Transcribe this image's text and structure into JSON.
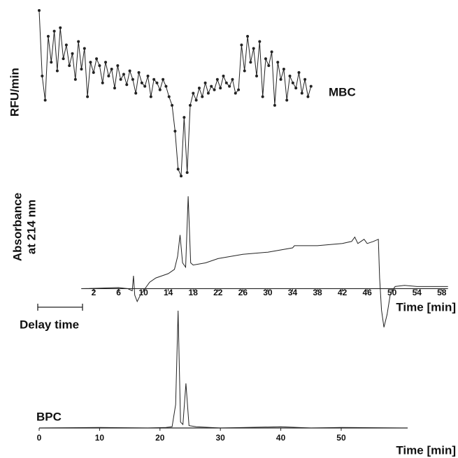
{
  "chart_data": [
    {
      "type": "line",
      "markers": true,
      "color": "#222",
      "label": "MBC",
      "y_label": "RFU/min",
      "xlim": [
        0,
        61
      ],
      "ylim": [
        0,
        100
      ],
      "x": [
        0,
        0.5,
        1,
        1.5,
        2,
        2.5,
        3,
        3.5,
        4,
        4.5,
        5,
        5.5,
        6,
        6.5,
        7,
        7.5,
        8,
        8.5,
        9,
        9.5,
        10,
        10.5,
        11,
        11.5,
        12,
        12.5,
        13,
        13.5,
        14,
        14.5,
        15,
        15.5,
        16,
        16.5,
        17,
        17.5,
        18,
        18.5,
        19,
        19.5,
        20,
        20.5,
        21,
        21.5,
        22,
        22.5,
        23,
        23.5,
        24,
        24.5,
        25,
        25.5,
        26,
        26.5,
        27,
        27.5,
        28,
        28.5,
        29,
        29.5,
        30,
        30.5,
        31,
        31.5,
        32,
        32.5,
        33,
        33.5,
        34,
        34.5,
        35,
        35.5,
        36,
        36.5,
        37,
        37.5,
        38,
        38.5,
        39,
        39.5,
        40,
        40.5,
        41,
        41.5,
        42,
        42.5,
        43,
        43.5,
        44,
        44.5,
        45
      ],
      "values": [
        100,
        62,
        48,
        85,
        70,
        88,
        65,
        90,
        72,
        80,
        68,
        75,
        60,
        82,
        66,
        78,
        50,
        70,
        64,
        72,
        68,
        58,
        70,
        62,
        66,
        55,
        68,
        60,
        63,
        57,
        65,
        60,
        52,
        64,
        58,
        56,
        62,
        50,
        60,
        58,
        54,
        60,
        56,
        50,
        45,
        30,
        8,
        4,
        38,
        6,
        45,
        52,
        48,
        55,
        50,
        58,
        52,
        56,
        54,
        60,
        55,
        62,
        58,
        56,
        60,
        52,
        54,
        80,
        65,
        85,
        70,
        78,
        62,
        82,
        50,
        72,
        68,
        76,
        45,
        70,
        60,
        66,
        48,
        62,
        58,
        55,
        64,
        52,
        60,
        50,
        56
      ]
    },
    {
      "type": "line",
      "color": "#222",
      "y_label": [
        "Absorbance",
        "at 214 nm"
      ],
      "x_label": "Time [min]",
      "xlim": [
        0,
        59
      ],
      "ylim": [
        -20,
        45
      ],
      "xticks": [
        2,
        6,
        10,
        14,
        18,
        22,
        26,
        30,
        34,
        38,
        42,
        46,
        50,
        54,
        58
      ],
      "x": [
        0.2,
        6,
        7.5,
        8.2,
        8.4,
        8.6,
        9,
        9.5,
        10,
        11,
        12,
        13,
        14,
        15,
        15.5,
        15.9,
        16.3,
        16.8,
        17.2,
        17.6,
        18,
        20,
        22,
        26,
        30,
        34,
        34.3,
        38,
        42,
        43.5,
        44,
        44.5,
        45,
        45.5,
        46,
        47,
        47.8,
        48,
        48.3,
        48.7,
        49.2,
        49.7,
        50,
        50.5,
        52,
        54,
        56,
        59
      ],
      "values": [
        0,
        0.5,
        0,
        -1,
        6,
        -3,
        -6,
        -3,
        -1,
        3,
        5,
        6,
        7,
        9,
        15,
        25,
        12,
        10,
        43,
        12,
        11,
        12,
        14,
        16,
        17,
        19,
        20,
        20,
        21,
        22,
        24,
        21,
        22,
        23,
        21,
        22,
        23,
        5,
        -10,
        -18,
        -12,
        -3,
        -1,
        1,
        1.5,
        1,
        1,
        1
      ]
    },
    {
      "type": "line",
      "color": "#222",
      "label": "BPC",
      "x_label": "Time [min]",
      "annotation": "Delay time",
      "xlim": [
        0,
        61
      ],
      "ylim": [
        0,
        100
      ],
      "xticks": [
        0,
        10,
        20,
        30,
        40,
        50
      ],
      "x": [
        0,
        10,
        18,
        21,
        22,
        22.6,
        23,
        23.4,
        23.8,
        24.3,
        24.8,
        26,
        30,
        40,
        45,
        50,
        60
      ],
      "values": [
        0,
        0.5,
        0,
        0.5,
        1,
        20,
        100,
        5,
        3,
        38,
        2,
        1,
        0,
        1,
        0,
        0.5,
        0
      ]
    }
  ]
}
